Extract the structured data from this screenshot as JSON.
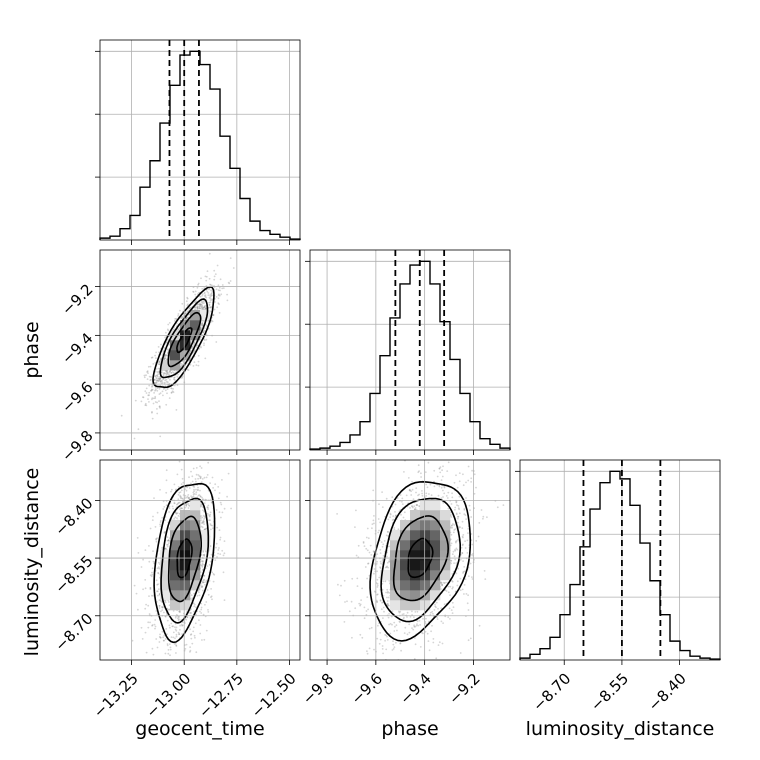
{
  "chart_data": {
    "type": "corner",
    "parameters": [
      "geocent_time",
      "phase",
      "luminosity_distance"
    ],
    "quantile_lines": {
      "geocent_time": [
        -13.07,
        -13.0,
        -12.93
      ],
      "phase": [
        -9.52,
        -9.42,
        -9.32
      ],
      "luminosity_distance": [
        -8.65,
        -8.55,
        -8.45
      ]
    },
    "ranges": {
      "geocent_time": [
        -13.4,
        -12.45
      ],
      "phase": [
        -9.87,
        -9.05
      ],
      "luminosity_distance": [
        -8.815,
        -8.295
      ]
    },
    "ticks": {
      "geocent_time": {
        "values": [
          -13.25,
          -13.0,
          -12.75,
          -12.5
        ],
        "labels": [
          "−13.25",
          "−13.00",
          "−12.75",
          "−12.50"
        ]
      },
      "phase": {
        "values": [
          -9.8,
          -9.6,
          -9.4,
          -9.2
        ],
        "labels": [
          "−9.8",
          "−9.6",
          "−9.4",
          "−9.2"
        ]
      },
      "luminosity_distance": {
        "values": [
          -8.7,
          -8.55,
          -8.4
        ],
        "labels": [
          "−8.70",
          "−8.55",
          "−8.40"
        ]
      }
    },
    "histograms": {
      "geocent_time": [
        0.01,
        0.02,
        0.06,
        0.13,
        0.28,
        0.42,
        0.62,
        0.82,
        0.98,
        1.0,
        0.93,
        0.8,
        0.55,
        0.38,
        0.22,
        0.1,
        0.05,
        0.03,
        0.015,
        0.005
      ],
      "phase": [
        0.005,
        0.01,
        0.02,
        0.04,
        0.08,
        0.15,
        0.3,
        0.5,
        0.7,
        0.88,
        0.98,
        1.0,
        0.88,
        0.68,
        0.48,
        0.3,
        0.15,
        0.06,
        0.03,
        0.01
      ],
      "luminosity_distance": [
        0.01,
        0.03,
        0.06,
        0.12,
        0.24,
        0.4,
        0.6,
        0.8,
        0.94,
        1.0,
        0.96,
        0.82,
        0.62,
        0.42,
        0.24,
        0.1,
        0.05,
        0.02,
        0.01,
        0.005
      ]
    },
    "correlations": {
      "phase_vs_geocent_time": 0.8,
      "luminosity_distance_vs_geocent_time": 0.35,
      "luminosity_distance_vs_phase": 0.3
    },
    "grid": true
  }
}
